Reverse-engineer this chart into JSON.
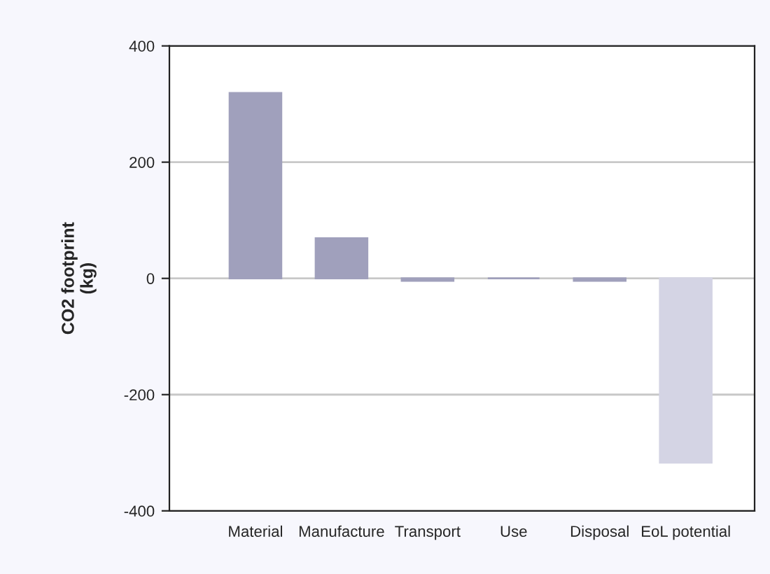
{
  "chart_data": {
    "type": "bar",
    "ylabel": "CO2 footprint\n(kg)",
    "categories": [
      "Material",
      "Manufacture",
      "Transport",
      "Use",
      "Disposal",
      "EoL potential"
    ],
    "values": [
      319,
      69,
      -4,
      0,
      -4,
      -317
    ],
    "colors": [
      "#a0a0bc",
      "#a0a0bc",
      "#a0a0bc",
      "#a0a0bc",
      "#a0a0bc",
      "#d4d4e4"
    ],
    "ylim": [
      -400,
      400
    ],
    "yticks": [
      -400,
      -200,
      0,
      200,
      400
    ],
    "grid": "y"
  }
}
